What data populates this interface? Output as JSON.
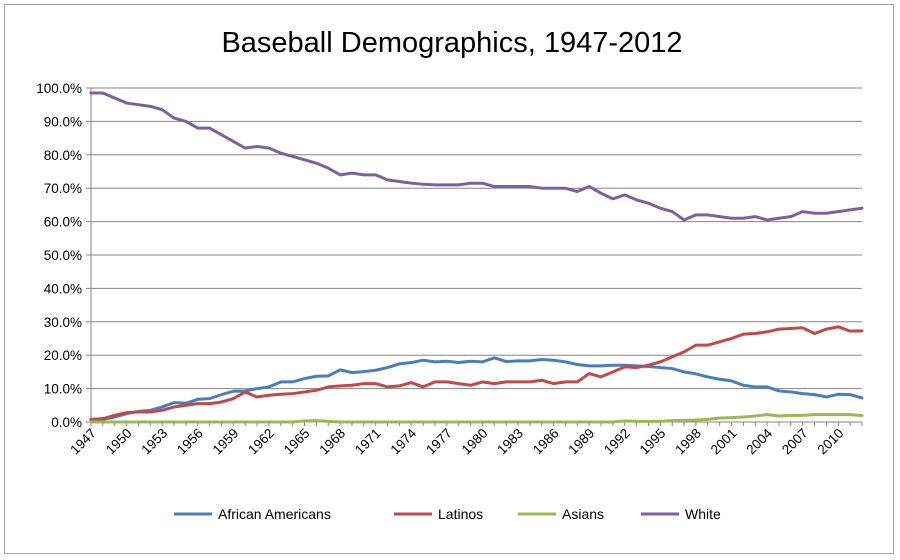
{
  "chart_data": {
    "type": "line",
    "title": "Baseball Demographics, 1947-2012",
    "xlabel": "",
    "ylabel": "",
    "ylim": [
      0,
      100
    ],
    "yticks": [
      "0.0%",
      "10.0%",
      "20.0%",
      "30.0%",
      "40.0%",
      "50.0%",
      "60.0%",
      "70.0%",
      "80.0%",
      "90.0%",
      "100.0%"
    ],
    "xticks": [
      "1947",
      "1950",
      "1953",
      "1956",
      "1959",
      "1962",
      "1965",
      "1968",
      "1971",
      "1974",
      "1977",
      "1980",
      "1983",
      "1986",
      "1989",
      "1992",
      "1995",
      "1998",
      "2001",
      "2004",
      "2007",
      "2010"
    ],
    "x": [
      1947,
      1948,
      1949,
      1950,
      1951,
      1952,
      1953,
      1954,
      1955,
      1956,
      1957,
      1958,
      1959,
      1960,
      1961,
      1962,
      1963,
      1964,
      1965,
      1966,
      1967,
      1968,
      1969,
      1970,
      1971,
      1972,
      1973,
      1974,
      1975,
      1976,
      1977,
      1978,
      1979,
      1980,
      1981,
      1982,
      1983,
      1984,
      1985,
      1986,
      1987,
      1988,
      1989,
      1990,
      1991,
      1992,
      1993,
      1994,
      1995,
      1996,
      1997,
      1998,
      1999,
      2000,
      2001,
      2002,
      2003,
      2004,
      2005,
      2006,
      2007,
      2008,
      2009,
      2010,
      2011,
      2012
    ],
    "legend_position": "bottom",
    "series": [
      {
        "name": "African Americans",
        "color": "#4a7ebb",
        "values": [
          0.5,
          0.8,
          1.5,
          2.5,
          3.2,
          3.5,
          4.5,
          5.8,
          5.6,
          6.8,
          7.0,
          8.2,
          9.2,
          9.3,
          10.0,
          10.5,
          12.0,
          12.0,
          13.0,
          13.7,
          13.8,
          15.6,
          14.8,
          15.1,
          15.5,
          16.3,
          17.4,
          17.8,
          18.5,
          18.0,
          18.2,
          17.8,
          18.2,
          18.0,
          19.2,
          18.1,
          18.3,
          18.3,
          18.7,
          18.5,
          18.0,
          17.2,
          16.8,
          16.8,
          17.0,
          17.0,
          16.8,
          16.6,
          16.3,
          16.0,
          15.0,
          14.4,
          13.5,
          12.8,
          12.3,
          11.0,
          10.5,
          10.5,
          9.3,
          9.0,
          8.5,
          8.2,
          7.5,
          8.3,
          8.2,
          7.2
        ]
      },
      {
        "name": "Latinos",
        "color": "#be4b48",
        "values": [
          0.8,
          1.0,
          2.0,
          2.8,
          3.0,
          3.0,
          3.5,
          4.5,
          5.0,
          5.5,
          5.5,
          6.0,
          7.0,
          9.0,
          7.5,
          8.0,
          8.3,
          8.5,
          9.0,
          9.5,
          10.5,
          10.8,
          11.0,
          11.5,
          11.5,
          10.5,
          10.8,
          11.8,
          10.5,
          12.0,
          12.0,
          11.5,
          11.0,
          12.0,
          11.5,
          12.0,
          12.0,
          12.0,
          12.5,
          11.5,
          12.0,
          12.0,
          14.5,
          13.5,
          15.0,
          16.5,
          16.3,
          17.0,
          18.0,
          19.5,
          21.0,
          23.0,
          23.0,
          24.0,
          25.0,
          26.3,
          26.5,
          27.0,
          27.8,
          28.0,
          28.2,
          26.5,
          27.8,
          28.5,
          27.2,
          27.3
        ]
      },
      {
        "name": "Asians",
        "color": "#98b954",
        "values": [
          0,
          0,
          0,
          0,
          0,
          0,
          0,
          0,
          0,
          0,
          0,
          0,
          0,
          0,
          0,
          0,
          0,
          0,
          0.3,
          0.4,
          0.2,
          0,
          0,
          0,
          0,
          0,
          0,
          0,
          0,
          0,
          0,
          0,
          0,
          0,
          0,
          0,
          0,
          0,
          0,
          0,
          0,
          0,
          0,
          0,
          0,
          0.3,
          0.2,
          0.2,
          0.2,
          0.4,
          0.5,
          0.6,
          0.8,
          1.2,
          1.3,
          1.5,
          1.8,
          2.2,
          1.8,
          2.0,
          2.0,
          2.2,
          2.2,
          2.2,
          2.2,
          1.9
        ]
      },
      {
        "name": "White",
        "color": "#7d60a0",
        "values": [
          98.5,
          98.5,
          97.0,
          95.5,
          95.0,
          94.5,
          93.5,
          91.0,
          90.0,
          88.0,
          88.0,
          86.0,
          84.0,
          82.0,
          82.5,
          82.0,
          80.5,
          79.5,
          78.5,
          77.5,
          76.0,
          74.0,
          74.5,
          74.0,
          74.0,
          72.5,
          72.0,
          71.5,
          71.2,
          71.0,
          71.0,
          71.0,
          71.5,
          71.5,
          70.5,
          70.5,
          70.5,
          70.5,
          70.0,
          70.0,
          70.0,
          69.0,
          70.5,
          68.5,
          66.8,
          68.0,
          66.5,
          65.5,
          64.0,
          63.0,
          60.5,
          62.0,
          62.0,
          61.5,
          61.0,
          61.0,
          61.5,
          60.5,
          61.0,
          61.5,
          63.0,
          62.5,
          62.5,
          63.0,
          63.5,
          64.0
        ]
      }
    ]
  }
}
